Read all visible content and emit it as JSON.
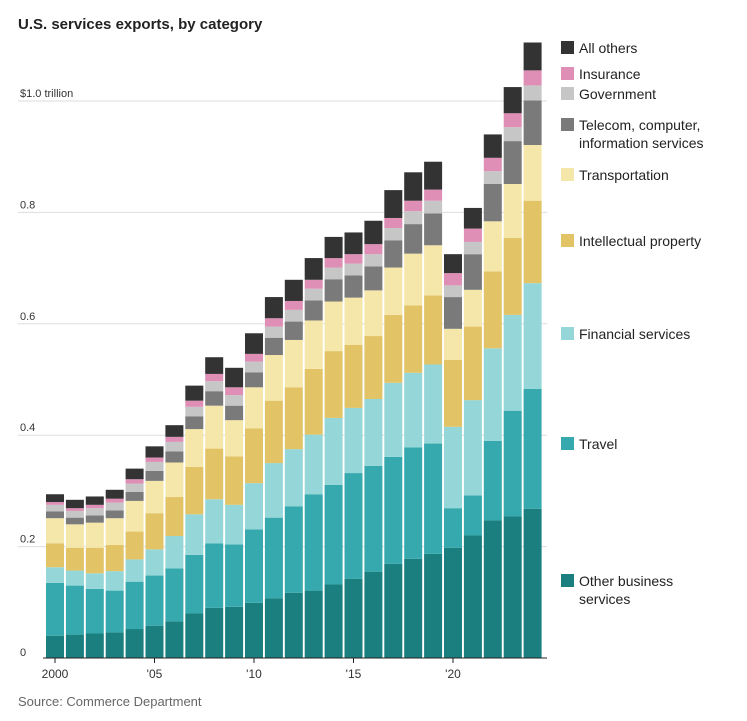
{
  "title": "U.S. services exports, by category",
  "source": "Source: Commerce Department",
  "chart_data": {
    "type": "bar",
    "stacked": true,
    "title": "U.S. services exports, by category",
    "x": [
      2000,
      2001,
      2002,
      2003,
      2004,
      2005,
      2006,
      2007,
      2008,
      2009,
      2010,
      2011,
      2012,
      2013,
      2014,
      2015,
      2016,
      2017,
      2018,
      2019,
      2020,
      2021,
      2022,
      2023,
      2024
    ],
    "ylim": [
      0,
      1.1
    ],
    "y_ticks": [
      {
        "value": 0,
        "label": "0"
      },
      {
        "value": 0.2,
        "label": "0.2"
      },
      {
        "value": 0.4,
        "label": "0.4"
      },
      {
        "value": 0.6,
        "label": "0.6"
      },
      {
        "value": 0.8,
        "label": "0.8"
      },
      {
        "value": 1.0,
        "label": "$1.0 trillion"
      }
    ],
    "x_ticks": [
      {
        "value": 2000,
        "label": "2000"
      },
      {
        "value": 2005,
        "label": "'05"
      },
      {
        "value": 2010,
        "label": "'10"
      },
      {
        "value": 2015,
        "label": "'15"
      },
      {
        "value": 2020,
        "label": "'20"
      }
    ],
    "grid": true,
    "legend": "right",
    "series": [
      {
        "name": "Other business services",
        "color": "#1a7f7e",
        "values": [
          0.04,
          0.042,
          0.044,
          0.046,
          0.052,
          0.058,
          0.066,
          0.08,
          0.09,
          0.092,
          0.099,
          0.107,
          0.117,
          0.121,
          0.132,
          0.142,
          0.155,
          0.169,
          0.178,
          0.187,
          0.198,
          0.22,
          0.247,
          0.254,
          0.268
        ]
      },
      {
        "name": "Travel",
        "color": "#35a9ad",
        "values": [
          0.095,
          0.088,
          0.08,
          0.075,
          0.085,
          0.09,
          0.095,
          0.105,
          0.116,
          0.112,
          0.132,
          0.145,
          0.155,
          0.173,
          0.179,
          0.19,
          0.19,
          0.192,
          0.2,
          0.198,
          0.071,
          0.072,
          0.143,
          0.19,
          0.215
        ]
      },
      {
        "name": "Financial services",
        "color": "#95d7d8",
        "values": [
          0.028,
          0.027,
          0.028,
          0.035,
          0.04,
          0.047,
          0.058,
          0.073,
          0.079,
          0.071,
          0.083,
          0.098,
          0.103,
          0.107,
          0.12,
          0.117,
          0.12,
          0.133,
          0.134,
          0.142,
          0.146,
          0.171,
          0.166,
          0.172,
          0.19
        ]
      },
      {
        "name": "Intellectual property",
        "color": "#e2c467",
        "values": [
          0.043,
          0.041,
          0.046,
          0.047,
          0.05,
          0.065,
          0.07,
          0.085,
          0.091,
          0.087,
          0.098,
          0.112,
          0.111,
          0.118,
          0.12,
          0.113,
          0.113,
          0.122,
          0.121,
          0.124,
          0.12,
          0.132,
          0.138,
          0.138,
          0.148
        ]
      },
      {
        "name": "Transportation",
        "color": "#f5e6a9",
        "values": [
          0.045,
          0.042,
          0.045,
          0.048,
          0.055,
          0.058,
          0.062,
          0.068,
          0.077,
          0.065,
          0.074,
          0.082,
          0.085,
          0.087,
          0.089,
          0.085,
          0.082,
          0.085,
          0.093,
          0.09,
          0.056,
          0.066,
          0.09,
          0.097,
          0.1
        ]
      },
      {
        "name": "Telecom, computer, information services",
        "color": "#7a7a7a",
        "values": [
          0.012,
          0.012,
          0.013,
          0.014,
          0.016,
          0.018,
          0.02,
          0.023,
          0.026,
          0.026,
          0.027,
          0.031,
          0.033,
          0.036,
          0.04,
          0.04,
          0.043,
          0.049,
          0.053,
          0.057,
          0.057,
          0.064,
          0.067,
          0.077,
          0.08
        ]
      },
      {
        "name": "Government",
        "color": "#c6c6c6",
        "values": [
          0.012,
          0.012,
          0.013,
          0.014,
          0.015,
          0.016,
          0.017,
          0.017,
          0.018,
          0.019,
          0.019,
          0.02,
          0.021,
          0.021,
          0.021,
          0.021,
          0.022,
          0.022,
          0.023,
          0.023,
          0.021,
          0.022,
          0.023,
          0.025,
          0.027
        ]
      },
      {
        "name": "Insurance",
        "color": "#df8fb5",
        "values": [
          0.005,
          0.005,
          0.006,
          0.007,
          0.008,
          0.008,
          0.009,
          0.011,
          0.013,
          0.014,
          0.014,
          0.015,
          0.016,
          0.016,
          0.017,
          0.017,
          0.018,
          0.018,
          0.019,
          0.02,
          0.022,
          0.024,
          0.024,
          0.025,
          0.027
        ]
      },
      {
        "name": "All others",
        "color": "#333333",
        "values": [
          0.014,
          0.015,
          0.015,
          0.016,
          0.019,
          0.02,
          0.021,
          0.027,
          0.03,
          0.035,
          0.037,
          0.038,
          0.038,
          0.039,
          0.038,
          0.039,
          0.042,
          0.05,
          0.051,
          0.05,
          0.034,
          0.037,
          0.042,
          0.047,
          0.05
        ]
      }
    ]
  }
}
